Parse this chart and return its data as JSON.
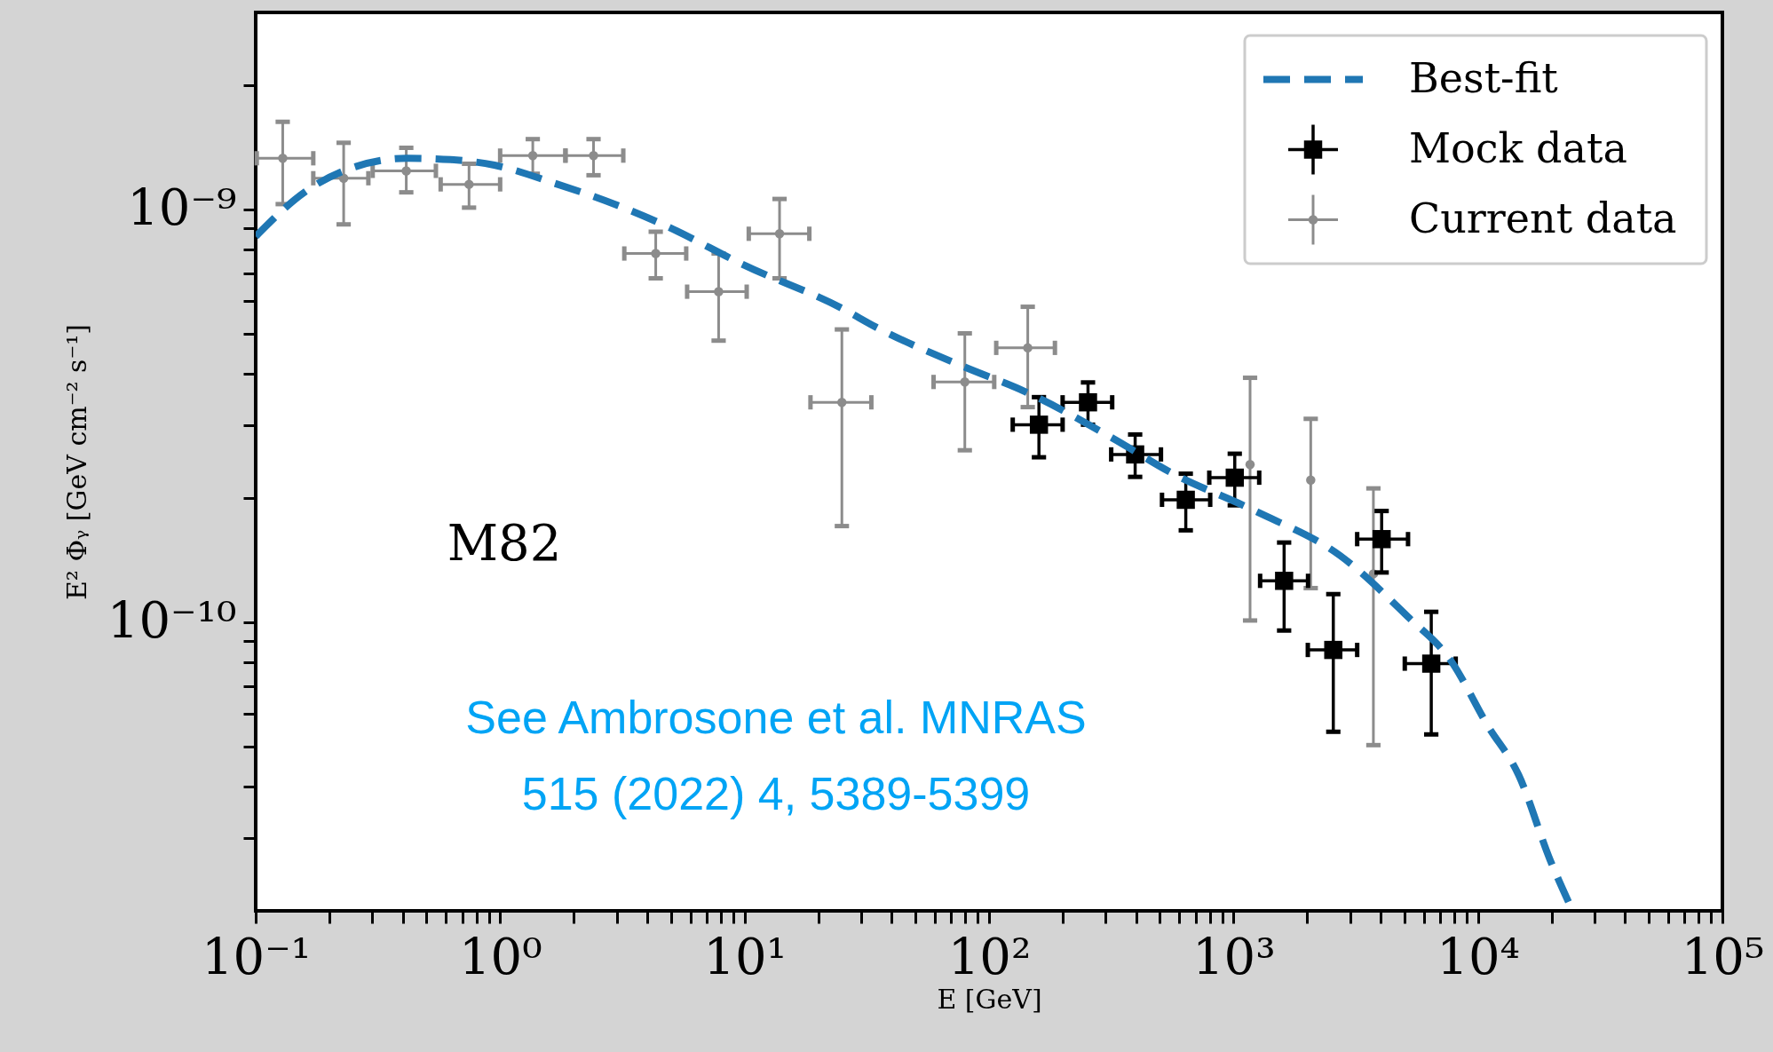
{
  "chart_data": {
    "type": "scatter",
    "xlabel": "E [GeV]",
    "ylabel": "E² Φᵧ [GeV cm⁻² s⁻¹]",
    "log": "xy",
    "grid": false,
    "legend": "top right",
    "xlim": [
      0.1,
      100000
    ],
    "ylim": [
      2e-11,
      3e-09
    ],
    "xticks": [
      {
        "value": 0.1,
        "label": "10⁻¹"
      },
      {
        "value": 0.2,
        "label": null
      },
      {
        "value": 0.3,
        "label": null
      },
      {
        "value": 0.4,
        "label": null
      },
      {
        "value": 0.5,
        "label": null
      },
      {
        "value": 0.6,
        "label": null
      },
      {
        "value": 0.7,
        "label": null
      },
      {
        "value": 0.8,
        "label": null
      },
      {
        "value": 0.9,
        "label": null
      },
      {
        "value": 1,
        "label": "10⁰"
      },
      {
        "value": 2,
        "label": null
      },
      {
        "value": 3,
        "label": null
      },
      {
        "value": 4,
        "label": null
      },
      {
        "value": 5,
        "label": null
      },
      {
        "value": 6,
        "label": null
      },
      {
        "value": 7,
        "label": null
      },
      {
        "value": 8,
        "label": null
      },
      {
        "value": 9,
        "label": null
      },
      {
        "value": 10,
        "label": "10¹"
      },
      {
        "value": 20,
        "label": null
      },
      {
        "value": 30,
        "label": null
      },
      {
        "value": 40,
        "label": null
      },
      {
        "value": 50,
        "label": null
      },
      {
        "value": 60,
        "label": null
      },
      {
        "value": 70,
        "label": null
      },
      {
        "value": 80,
        "label": null
      },
      {
        "value": 90,
        "label": null
      },
      {
        "value": 100,
        "label": "10²"
      },
      {
        "value": 200,
        "label": null
      },
      {
        "value": 300,
        "label": null
      },
      {
        "value": 400,
        "label": null
      },
      {
        "value": 500,
        "label": null
      },
      {
        "value": 600,
        "label": null
      },
      {
        "value": 700,
        "label": null
      },
      {
        "value": 800,
        "label": null
      },
      {
        "value": 900,
        "label": null
      },
      {
        "value": 1000,
        "label": "10³"
      },
      {
        "value": 2000,
        "label": null
      },
      {
        "value": 3000,
        "label": null
      },
      {
        "value": 4000,
        "label": null
      },
      {
        "value": 5000,
        "label": null
      },
      {
        "value": 6000,
        "label": null
      },
      {
        "value": 7000,
        "label": null
      },
      {
        "value": 8000,
        "label": null
      },
      {
        "value": 9000,
        "label": null
      },
      {
        "value": 10000,
        "label": "10⁴"
      },
      {
        "value": 20000,
        "label": null
      },
      {
        "value": 30000,
        "label": null
      },
      {
        "value": 40000,
        "label": null
      },
      {
        "value": 50000,
        "label": null
      },
      {
        "value": 60000,
        "label": null
      },
      {
        "value": 70000,
        "label": null
      },
      {
        "value": 80000,
        "label": null
      },
      {
        "value": 90000,
        "label": null
      },
      {
        "value": 100000,
        "label": "10⁵"
      }
    ],
    "yticks": [
      {
        "value": 3e-11,
        "label": null
      },
      {
        "value": 4e-11,
        "label": null
      },
      {
        "value": 5e-11,
        "label": null
      },
      {
        "value": 6e-11,
        "label": null
      },
      {
        "value": 7e-11,
        "label": null
      },
      {
        "value": 8e-11,
        "label": null
      },
      {
        "value": 9e-11,
        "label": null
      },
      {
        "value": 1e-10,
        "label": "10⁻¹⁰"
      },
      {
        "value": 2e-10,
        "label": null
      },
      {
        "value": 3e-10,
        "label": null
      },
      {
        "value": 4e-10,
        "label": null
      },
      {
        "value": 5e-10,
        "label": null
      },
      {
        "value": 6e-10,
        "label": null
      },
      {
        "value": 7e-10,
        "label": null
      },
      {
        "value": 8e-10,
        "label": null
      },
      {
        "value": 9e-10,
        "label": null
      },
      {
        "value": 1e-09,
        "label": "10⁻⁹"
      },
      {
        "value": 2e-09,
        "label": null
      }
    ],
    "annotations": [
      "M82",
      "See Ambrosone et al. MNRAS",
      "515 (2022) 4, 5389-5399"
    ],
    "series": [
      {
        "name": "Best-fit",
        "type": "line",
        "color": "#1f77b4",
        "line_style": "dashed",
        "marker": "none",
        "x": [
          0.1,
          0.158,
          0.257,
          0.417,
          0.628,
          0.947,
          1.72,
          2.69,
          4.72,
          9.96,
          25.3,
          34.4,
          79.6,
          139,
          321,
          551,
          1227,
          2731,
          5176,
          7706,
          10965,
          14690,
          19720,
          24200
        ],
        "values": [
          8.6e-10,
          1.1e-09,
          1.27e-09,
          1.33e-09,
          1.32e-09,
          1.28e-09,
          1.15e-09,
          1.05e-09,
          9.15e-10,
          7.33e-10,
          5.74e-10,
          5.19e-10,
          4.15e-10,
          3.63e-10,
          2.79e-10,
          2.31e-10,
          1.86e-10,
          1.45e-10,
          1.03e-10,
          8.11e-11,
          5.62e-11,
          4.26e-11,
          2.66e-11,
          2.02e-11
        ]
      },
      {
        "name": "Mock data",
        "color": "#000000",
        "marker": "square",
        "x": [
          160,
          254,
          396,
          638,
          1012,
          1611,
          2560,
          4037,
          6442
        ],
        "values": [
          3.01e-10,
          3.41e-10,
          2.55e-10,
          1.98e-10,
          2.24e-10,
          1.26e-10,
          8.57e-11,
          1.59e-10,
          7.94e-11
        ],
        "errors": [
          [
            2.51e-10,
            3.51e-10
          ],
          [
            3.01e-10,
            3.81e-10
          ],
          [
            2.25e-10,
            2.85e-10
          ],
          [
            1.67e-10,
            2.29e-10
          ],
          [
            1.92e-10,
            2.56e-10
          ],
          [
            9.55e-11,
            1.56e-10
          ],
          [
            5.43e-11,
            1.17e-10
          ],
          [
            1.32e-10,
            1.86e-10
          ],
          [
            5.35e-11,
            1.06e-10
          ]
        ],
        "xerrors": [
          [
            125,
            200
          ],
          [
            200,
            319
          ],
          [
            316,
            505
          ],
          [
            510,
            803
          ],
          [
            796,
            1274
          ],
          [
            1285,
            2018
          ],
          [
            2014,
            3206
          ],
          [
            3206,
            5176
          ],
          [
            5020,
            8110
          ]
        ]
      },
      {
        "name": "Current data",
        "color": "#8c8c8c",
        "marker": "circle",
        "x": [
          0.129,
          0.229,
          0.413,
          0.746,
          1.36,
          2.41,
          4.33,
          7.83,
          13.9,
          25,
          79.6,
          144,
          1169,
          2070,
          3735
        ],
        "values": [
          1.33e-09,
          1.19e-09,
          1.24e-09,
          1.15e-09,
          1.35e-09,
          1.35e-09,
          7.82e-10,
          6.32e-10,
          8.73e-10,
          3.41e-10,
          3.82e-10,
          4.62e-10,
          2.41e-10,
          2.21e-10,
          1.31e-10
        ],
        "errors": [
          [
            1.03e-09,
            1.63e-09
          ],
          [
            9.2e-10,
            1.45e-09
          ],
          [
            1.1e-09,
            1.41e-09
          ],
          [
            1.01e-09,
            1.29e-09
          ],
          [
            1.22e-09,
            1.48e-09
          ],
          [
            1.21e-09,
            1.48e-09
          ],
          [
            6.81e-10,
            8.83e-10
          ],
          [
            4.81e-10,
            7.82e-10
          ],
          [
            6.81e-10,
            1.06e-09
          ],
          [
            1.71e-10,
            5.12e-10
          ],
          [
            2.61e-10,
            5.01e-10
          ],
          [
            3.32e-10,
            5.81e-10
          ],
          [
            1.01e-10,
            3.91e-10
          ],
          [
            1.21e-10,
            3.11e-10
          ],
          [
            5.04e-11,
            2.11e-10
          ]
        ],
        "xerrors": [
          [
            0.101,
            0.172
          ],
          [
            0.172,
            0.289
          ],
          [
            0.301,
            0.546
          ],
          [
            0.571,
            1.0
          ],
          [
            1.0,
            1.85
          ],
          [
            1.85,
            3.19
          ],
          [
            3.22,
            5.77
          ],
          [
            5.82,
            10.2
          ],
          [
            10.4,
            18.4
          ],
          [
            18.6,
            33
          ],
          [
            59.3,
            105
          ],
          [
            107,
            186
          ],
          null,
          null,
          null
        ]
      }
    ]
  }
}
